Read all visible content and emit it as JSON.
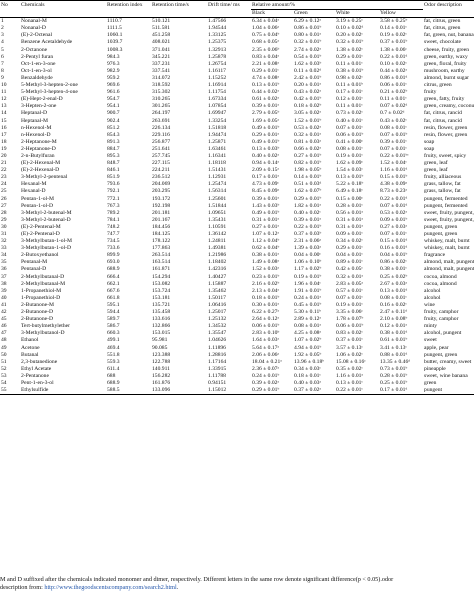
{
  "headers": {
    "no": "No",
    "chem": "Chemicals",
    "ri": "Retention index",
    "rt": "Retention time/s",
    "dt": "Drift time/ ms",
    "rel": "Relative amount/%",
    "black": "Black",
    "green": "Green",
    "white": "White",
    "yellow": "Yellow",
    "odor": "Odor description"
  },
  "rows": [
    [
      "1",
      "Nonanal-M",
      "1110.7",
      "510.121",
      "1.47566",
      "6.34 ± 0.04ᵃ",
      "6.29 ± 0.12ᵃ",
      "3.19 ± 0.25ᶜ",
      "3.58 ± 0.25ᵇ",
      "fat, citrus, green"
    ],
    [
      "2",
      "Nonanal-D",
      "1111.5",
      "511.581",
      "1.94544",
      "1.04 ± 0.06ᵃ",
      "0.86 ± 0.01ᵇ",
      "0.10 ± 0.02ᵈ",
      "0.14 ± 0.01ᶜ",
      "fat, citrus, green"
    ],
    [
      "3",
      "(E)-2-Octenal",
      "1060.1",
      "451.258",
      "1.33125",
      "0.75 ± 0.04ᵇ",
      "0.80 ± 0.01ᵃ",
      "0.20 ± 0.02ᶜ",
      "0.19 ± 0.02ᶜ",
      "fat, green, nut, banana, green"
    ],
    [
      "4",
      "Benzene Acetaldehyde",
      "1039.7",
      "408.021",
      "1.25375",
      "0.68 ± 0.05ᵃ",
      "0.32 ± 0.01ᵇ",
      "0.32 ± 0.01ᵇ",
      "0.37 ± 0.01ᵇ",
      "sweet, chocolate"
    ],
    [
      "5",
      "2-Octanone",
      "1008.3",
      "371.041",
      "1.32913",
      "2.35 ± 0.06ᵇ",
      "2.74 ± 0.02ᵃ",
      "1.38 ± 0.02ᶜ",
      "1.38 ± 0.06ᶜ",
      "cheese, fruity, green"
    ],
    [
      "6",
      "2-Pentyl furan",
      "984.3",
      "345.221",
      "1.25878",
      "0.83 ± 0.04ᵃ",
      "0.54 ± 0.01ᵇ",
      "0.29 ± 0.01ᶜ",
      "0.22 ± 0.01ᵈ",
      "green, earthy, waxy"
    ],
    [
      "7",
      "Oct-1-en-3-one",
      "976.3",
      "337.231",
      "1.26754",
      "2.21 ± 0.08ᵃ",
      "1.62 ± 0.03ᵇ",
      "0.11 ± 0.01ᶜ",
      "0.10 ± 0.02ᶜ",
      "green, floral, fruity"
    ],
    [
      "8",
      "Oct-1-en-3-ol",
      "982.9",
      "337.541",
      "1.16117",
      "0.29 ± 0.01ᶜ",
      "0.11 ± 0.02ᵈ",
      "0.38 ± 0.01ᵇ",
      "0.44 ± 0.02ᵃ",
      "mushroom, earthy"
    ],
    [
      "9",
      "Benzaldehyde",
      "959.2",
      "314.072",
      "1.15252",
      "4.74 ± 0.08ᵃ",
      "2.42 ± 0.01ᵇ",
      "0.98 ± 0.02ᶜ",
      "0.86 ± 0.01ᵈ",
      "almond, burnt sugar"
    ],
    [
      "10",
      "5-Methyl-3-hepten-2-one",
      "969.6",
      "318.592",
      "1.16914",
      "0.13 ± 0.01ᵇ",
      "0.20 ± 0.01ᵃ",
      "0.11 ± 0.01ᵇ",
      "0.06 ± 0.01ᶜ",
      "citrus, green"
    ],
    [
      "11",
      "5-Methyl-3-hepten-4-one",
      "961.6",
      "315.302",
      "1.11754",
      "0.44 ± 0.02ᵃ",
      "0.43 ± 0.02ᵃ",
      "0.17 ± 0.01ᶜ",
      "0.21 ± 0.02ᵇ",
      "fruity"
    ],
    [
      "12",
      "(E)-Hept-2-enal-D",
      "954.7",
      "310.265",
      "1.67334",
      "0.61 ± 0.02ᵃ",
      "0.42 ± 0.01ᵇ",
      "0.12 ± 0.01ᶜ",
      "0.11 ± 0.01ᶜ",
      "green, fatty, fruity"
    ],
    [
      "13",
      "3-Hepten-2-one",
      "954.1",
      "301.265",
      "1.07854",
      "0.39 ± 0.01ᵃ",
      "0.18 ± 0.02ᵇ",
      "0.11 ± 0.01ᶜ",
      "0.07 ± 0.02ᵈ",
      "green, creamy, coconut, cheesy"
    ],
    [
      "14",
      "Heptanal-D",
      "900.7",
      "264.197",
      "1.69947",
      "2.79 ± 0.05ᵇ",
      "3.05 ± 0.02ᵃ",
      "0.73 ± 0.02ᶜ",
      "0.7 ± 0.02ᵈ",
      "fat, citrus, rancid"
    ],
    [
      "15",
      "Heptanal-M",
      "902.4",
      "263.691",
      "1.33254",
      "1.69 ± 0.05ᵃ",
      "1.52 ± 0.01ᵇ",
      "0.40 ± 0.01ᶜ",
      "0.43 ± 0.02ᶜ",
      "fat, citrus, rancid"
    ],
    [
      "16",
      "n-Hexenol-M",
      "851.2",
      "226.134",
      "1.51818",
      "0.49 ± 0.01ᵇ",
      "0.53 ± 0.02ᵃ",
      "0.07 ± 0.01ᶜ",
      "0.08 ± 0.01ᶜ",
      "resin, flower, green"
    ],
    [
      "17",
      "n-Hexenol-D",
      "854.3",
      "229.116",
      "1.94474",
      "0.29 ± 0.01ᵃ",
      "0.32 ± 0.01ᵃ",
      "0.06 ± 0.01ᵇ",
      "0.07 ± 0.01ᵇ",
      "resin, flower, green"
    ],
    [
      "18",
      "2-Heptanone-M",
      "891.3",
      "256.877",
      "1.25871",
      "0.49 ± 0.01ᵇ",
      "0.81 ± 0.03ᵃ",
      "0.41 ± 0.00ᶜ",
      "0.39 ± 0.01ᶜ",
      "soap"
    ],
    [
      "19",
      "2-Heptanone-D",
      "884.7",
      "251.641",
      "1.63461",
      "0.13 ± 0.03ᵇ",
      "0.66 ± 0.02ᵃ",
      "0.08 ± 0.01ᶜ",
      "0.07 ± 0.01ᶜ",
      "soap"
    ],
    [
      "20",
      "2-n-Butylfuran",
      "895.3",
      "257.745",
      "1.16341",
      "0.40 ± 0.02ᵃ",
      "0.27 ± 0.01ᵇ",
      "0.19 ± 0.01ᶜ",
      "0.22 ± 0.01ᵇᶜ",
      "fruity, sweet, spicy"
    ],
    [
      "21",
      "(E)-2-Hexenal-M",
      "848.7",
      "227.115",
      "1.18118",
      "0.94 ± 0.14ᵃ",
      "0.82 ± 0.01ᵇ",
      "1.62 ± 0.09ᶜ",
      "1.52 ± 0.04ᶜ",
      "green, leaf"
    ],
    [
      "22",
      "(E)-2-Hexenal-D",
      "846.1",
      "224.211",
      "1.51431",
      "2.09 ± 0.15ᵃ",
      "1.98 ± 0.05ᵇ",
      "1.54 ± 0.03ᶜ",
      "1.16 ± 0.01ᵈ",
      "green, leaf"
    ],
    [
      "23",
      "3-Methyl-2-pentenal",
      "851.9",
      "236.512",
      "1.12931",
      "0.17 ± 0.01ᵃ",
      "0.14 ± 0.01ᵇ",
      "0.13 ± 0.01ᵇ",
      "0.15 ± 0.01ᵇ",
      "fruity, alliaceous"
    ],
    [
      "24",
      "Hexanal-M",
      "793.6",
      "204.069",
      "1.25474",
      "4.73 ± 0.09ᶜ",
      "0.51 ± 0.03ᵈ",
      "5.22 ± 0.18ᵇ",
      "4.38 ± 0.09ᵃ",
      "grass, tallow, fat"
    ],
    [
      "25",
      "Hexanal-D",
      "792.1",
      "203.295",
      "1.56314",
      "8.45 ± 0.09ᵃ",
      "1.62 ± 0.07ᵇ",
      "6.49 ± 0.18ᶜ",
      "8.73 ± 0.23ᵃ",
      "grass, tallow, fat"
    ],
    [
      "26",
      "Pentan-1-ol-M",
      "772.1",
      "193.172",
      "1.25601",
      "0.39 ± 0.01ᵃ",
      "0.29 ± 0.01ᵇ",
      "0.15 ± 0.00ᶜ",
      "0.22 ± 0.01ᵈ",
      "pungent, fermented"
    ],
    [
      "27",
      "Pentan-1-ol-D",
      "767.3",
      "192.198",
      "1.51844",
      "1.43 ± 0.03ᵇ",
      "1.82 ± 0.01ᵃ",
      "0.28 ± 0.01ᶜ",
      "0.07 ± 0.01ᵈ",
      "pungent, fermented"
    ],
    [
      "28",
      "3-Methyl-2-butenal-M",
      "789.2",
      "201.181",
      "1.09651",
      "0.49 ± 0.01ᵇ",
      "0.40 ± 0.02ᶜ",
      "0.56 ± 0.01ᵃ",
      "0.53 ± 0.02ᵃ",
      "sweet, fruity, pungent, nut"
    ],
    [
      "29",
      "3-Methyl-2-butenal-D",
      "784.1",
      "201.167",
      "1.35431",
      "0.31 ± 0.01ᵃ",
      "0.39 ± 0.01ᵃ",
      "0.31 ± 0.01ᵃ",
      "0.09 ± 0.01ᵇ",
      "sweet, fruity, pungent, nut"
    ],
    [
      "30",
      "(E)-2-Pentenal-M",
      "748.2",
      "184.456",
      "1.10591",
      "0.27 ± 0.01ᵃ",
      "0.22 ± 0.01ᵇ",
      "0.31 ± 0.01ᵃ",
      "0.27 ± 0.03ᵃ",
      "pungent, green"
    ],
    [
      "31",
      "(E)-2-Pentenal-D",
      "747.7",
      "184.125",
      "1.36142",
      "1.07 ± 0.12ᵃ",
      "0.37 ± 0.03ᵇ",
      "0.09 ± 0.01ᶜ",
      "0.07 ± 0.01ᶜ",
      "pungent, green"
    ],
    [
      "32",
      "3-Methylbutan-1-ol-M",
      "734.5",
      "178.122",
      "1.24811",
      "1.12 ± 0.04ᵇ",
      "2.31 ± 0.06ᵃ",
      "0.34 ± 0.02ᶜ",
      "0.15 ± 0.01ᵈ",
      "whiskey, malt, burnt"
    ],
    [
      "33",
      "3-Methylbutan-1-ol-D",
      "733.6",
      "177.863",
      "1.49381",
      "0.62 ± 0.04ᵇ",
      "1.39 ± 0.03ᵃ",
      "0.29 ± 0.01ᶜ",
      "0.16 ± 0.01ᵈ",
      "whiskey, malt, burnt"
    ],
    [
      "34",
      "2-Butoxyethanol",
      "899.9",
      "263.514",
      "1.21986",
      "0.38 ± 0.01ᵃ",
      "0.04 ± 0.00ᶜ",
      "0.04 ± 0.01ᶜ",
      "0.04 ± 0.01ᵇ",
      "fragrance"
    ],
    [
      "35",
      "Pentanal-M",
      "693.0",
      "163.514",
      "1.18402",
      "1.49 ± 0.08ᵃ",
      "1.06 ± 0.10ᵇ",
      "0.89 ± 0.01ᶜ",
      "0.86 ± 0.02ᶜ",
      "almond, malt, pungent"
    ],
    [
      "36",
      "Pentanal-D",
      "688.9",
      "161.871",
      "1.42316",
      "1.52 ± 0.03ᵃ",
      "1.17 ± 0.02ᵇ",
      "0.42 ± 0.05ᶜ",
      "0.38 ± 0.01ᶜ",
      "almond, malt, pungent"
    ],
    [
      "37",
      "2-Methylbutanal-D",
      "666.4",
      "154.294",
      "1.40427",
      "0.23 ± 0.01ᵇ",
      "0.19 ± 0.01ᵇ",
      "0.32 ± 0.01ᵃ",
      "0.25 ± 0.02ᵇ",
      "cocoa, almond"
    ],
    [
      "38",
      "2-Methylbutanal-M",
      "662.1",
      "153.082",
      "1.15887",
      "2.16 ± 0.02ᵇ",
      "1.96 ± 0.04ᶜ",
      "2.83 ± 0.05ᵃ",
      "2.67 ± 0.03ᵃ",
      "cocoa, almond"
    ],
    [
      "39",
      "1-Propanethiol-M",
      "667.6",
      "153.724",
      "1.35462",
      "2.13 ± 0.04ᵃ",
      "1.91 ± 0.01ᵇ",
      "0.57 ± 0.01ᶜ",
      "0.13 ± 0.01ᵈ",
      "alcohol"
    ],
    [
      "40",
      "1-Propanethiol-D",
      "661.8",
      "153.181",
      "1.50117",
      "0.18 ± 0.01ᵇ",
      "0.24 ± 0.01ᵃ",
      "0.07 ± 0.01ᶜ",
      "0.08 ± 0.01ᶜ",
      "alcohol"
    ],
    [
      "41",
      "2-Butanone-M",
      "595.1",
      "135.721",
      "1.06416",
      "0.30 ± 0.01ᵃ",
      "0.45 ± 0.01ᵇ",
      "0.19 ± 0.01ᶜ",
      "0.16 ± 0.02ᶜ",
      "wine"
    ],
    [
      "42",
      "2-Butanone-D",
      "594.4",
      "135.458",
      "1.25017",
      "6.22 ± 0.27ᵃ",
      "5.30 ± 0.11ᵇ",
      "3.35 ± 0.06ᶜ",
      "2.47 ± 0.11ᵈ",
      "fruity, camphor"
    ],
    [
      "45",
      "2-Butanone-D",
      "589.7",
      "133.616",
      "1.25132",
      "2.64 ± 0.12ᵃ",
      "2.89 ± 0.12ᵃ",
      "1.78 ± 0.07ᵇ",
      "2.10 ± 0.08ᵇ",
      "fruity, camphor"
    ],
    [
      "46",
      "Tert-butylmethylether",
      "586.7",
      "132.866",
      "1.34532",
      "0.06 ± 0.01ᵇ",
      "0.08 ± 0.01ᵃ",
      "0.06 ± 0.01ᵇ",
      "0.12 ± 0.01ᵃ",
      "minty"
    ],
    [
      "47",
      "3-Methylbutanol-D",
      "660.3",
      "153.015",
      "1.35547",
      "2.83 ± 0.10ᵇ",
      "4.25 ± 0.08ᵃ",
      "0.83 ± 0.02ᶜ",
      "0.38 ± 0.01ᵈ",
      "alcohol, pungent"
    ],
    [
      "48",
      "Ethanol",
      "499.1",
      "95.981",
      "1.04626",
      "1.64 ± 0.03ᵃ",
      "1.07 ± 0.02ᵇ",
      "0.37 ± 0.01ᶜ",
      "0.61 ± 0.01ᵇ",
      "sweet"
    ],
    [
      "49",
      "Acetone",
      "469.4",
      "90.085",
      "1.11896",
      "5.64 ± 0.17ᵃ",
      "4.94 ± 0.01ᵇ",
      "3.57 ± 0.13ᶜ",
      "3.41 ± 0.13ᶜ",
      "apple, pear"
    ],
    [
      "50",
      "Butanal",
      "551.8",
      "123.388",
      "1.28816",
      "2.06 ± 0.06ᵃ",
      "1.92 ± 0.05ᵇ",
      "1.06 ± 0.02ᶜ",
      "0.88 ± 0.01ᵈ",
      "pungent, green"
    ],
    [
      "51",
      "2,3-butanedione",
      "559.3",
      "122.788",
      "1.17164",
      "18.04 ± 0.21ᵃ",
      "13.96 ± 0.18ᵇ",
      "15.08 ± 0.16ᶜ",
      "13.35 ± 0.46ᵈ",
      "butter, creamy, sweet"
    ],
    [
      "52",
      "Ethyl Acetate",
      "611.4",
      "140.911",
      "1.33915",
      "2.36 ± 0.07ᵃ",
      "0.34 ± 0.03ᶜ",
      "0.35 ± 0.02ᶜ",
      "0.73 ± 0.01ᵇ",
      "pineapple"
    ],
    [
      "53",
      "2-Pentanone",
      "688",
      "156.282",
      "1.11788",
      "0.24 ± 0.01ᵇ",
      "0.18 ± 0.01ᶜ",
      "1.16 ± 0.01ᵃ",
      "0.28 ± 0.01ᵇ",
      "sweet, wine banana"
    ],
    [
      "54",
      "Pent-1-en-3-ol",
      "688.9",
      "161.876",
      "0.94151",
      "0.39 ± 0.02ᵃ",
      "0.40 ± 0.03ᵃ",
      "0.13 ± 0.01ᶜ",
      "0.25 ± 0.01ᵇ",
      "green"
    ],
    [
      "55",
      "Ethylsulfide",
      "588.5",
      "133.096",
      "1.15012",
      "0.29 ± 0.01ᵇ",
      "0.37 ± 0.02ᵃ",
      "0.22 ± 0.01ᶜ",
      "0.17 ± 0.01ᵈ",
      "pungent"
    ]
  ],
  "footer": {
    "line1": "M and D suffixed after the chemicals indicated monomer and dimer, respectively. Different letters in the same row denote significant difference(p < 0.05).odor",
    "line2_prefix": "description from: ",
    "link": "http://www.thegoodscentscompany.com/search2.html",
    "line2_suffix": "."
  }
}
